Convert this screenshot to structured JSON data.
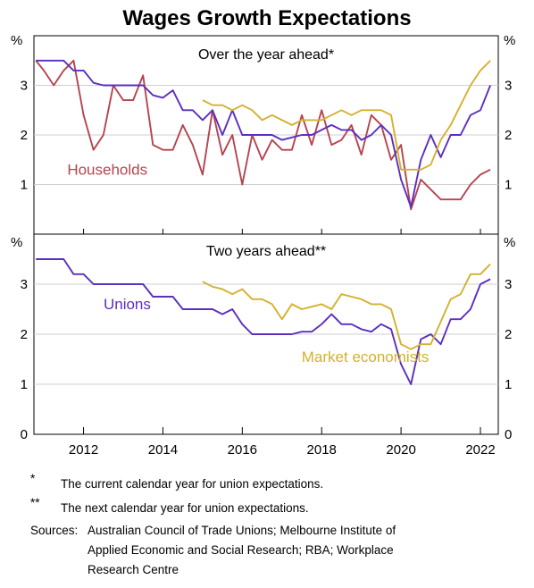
{
  "chart_data": {
    "type": "line",
    "title": "Wages Growth Expectations",
    "unit": "%",
    "x_ticks": [
      "2012",
      "2014",
      "2016",
      "2018",
      "2020",
      "2022"
    ],
    "xlim": [
      2010.75,
      2022.45
    ],
    "panels": [
      {
        "subtitle": "Over the year ahead*",
        "ylim": [
          0,
          4
        ],
        "y_ticks": [
          "1",
          "2",
          "3"
        ],
        "series": [
          {
            "name": "Households",
            "color": "#b5444e",
            "points": [
              [
                2010.8,
                3.5
              ],
              [
                2011.0,
                3.3
              ],
              [
                2011.25,
                3.0
              ],
              [
                2011.5,
                3.3
              ],
              [
                2011.75,
                3.5
              ],
              [
                2012.0,
                2.4
              ],
              [
                2012.25,
                1.7
              ],
              [
                2012.5,
                2.0
              ],
              [
                2012.75,
                3.0
              ],
              [
                2013.0,
                2.7
              ],
              [
                2013.25,
                2.7
              ],
              [
                2013.5,
                3.2
              ],
              [
                2013.75,
                1.8
              ],
              [
                2014.0,
                1.7
              ],
              [
                2014.25,
                1.7
              ],
              [
                2014.5,
                2.2
              ],
              [
                2014.75,
                1.8
              ],
              [
                2015.0,
                1.2
              ],
              [
                2015.25,
                2.5
              ],
              [
                2015.5,
                1.6
              ],
              [
                2015.75,
                2.0
              ],
              [
                2016.0,
                1.0
              ],
              [
                2016.25,
                2.0
              ],
              [
                2016.5,
                1.5
              ],
              [
                2016.75,
                1.9
              ],
              [
                2017.0,
                1.7
              ],
              [
                2017.25,
                1.7
              ],
              [
                2017.5,
                2.4
              ],
              [
                2017.75,
                1.8
              ],
              [
                2018.0,
                2.5
              ],
              [
                2018.25,
                1.8
              ],
              [
                2018.5,
                1.9
              ],
              [
                2018.75,
                2.2
              ],
              [
                2019.0,
                1.6
              ],
              [
                2019.25,
                2.4
              ],
              [
                2019.5,
                2.2
              ],
              [
                2019.75,
                1.5
              ],
              [
                2020.0,
                1.8
              ],
              [
                2020.25,
                0.5
              ],
              [
                2020.5,
                1.1
              ],
              [
                2020.75,
                0.9
              ],
              [
                2021.0,
                0.7
              ],
              [
                2021.25,
                0.7
              ],
              [
                2021.5,
                0.7
              ],
              [
                2021.75,
                1.0
              ],
              [
                2022.0,
                1.2
              ],
              [
                2022.25,
                1.3
              ]
            ]
          },
          {
            "name": "Unions",
            "color": "#5b2fc0",
            "points": [
              [
                2010.8,
                3.5
              ],
              [
                2011.0,
                3.5
              ],
              [
                2011.25,
                3.5
              ],
              [
                2011.5,
                3.5
              ],
              [
                2011.75,
                3.3
              ],
              [
                2012.0,
                3.3
              ],
              [
                2012.25,
                3.05
              ],
              [
                2012.5,
                3.0
              ],
              [
                2012.75,
                3.0
              ],
              [
                2013.0,
                3.0
              ],
              [
                2013.25,
                3.0
              ],
              [
                2013.5,
                3.0
              ],
              [
                2013.75,
                2.8
              ],
              [
                2014.0,
                2.75
              ],
              [
                2014.25,
                2.9
              ],
              [
                2014.5,
                2.5
              ],
              [
                2014.75,
                2.5
              ],
              [
                2015.0,
                2.3
              ],
              [
                2015.25,
                2.5
              ],
              [
                2015.5,
                2.0
              ],
              [
                2015.75,
                2.5
              ],
              [
                2016.0,
                2.0
              ],
              [
                2016.25,
                2.0
              ],
              [
                2016.5,
                2.0
              ],
              [
                2016.75,
                2.0
              ],
              [
                2017.0,
                1.9
              ],
              [
                2017.25,
                1.95
              ],
              [
                2017.5,
                2.0
              ],
              [
                2017.75,
                2.0
              ],
              [
                2018.0,
                2.1
              ],
              [
                2018.25,
                2.2
              ],
              [
                2018.5,
                2.1
              ],
              [
                2018.75,
                2.1
              ],
              [
                2019.0,
                1.9
              ],
              [
                2019.25,
                2.0
              ],
              [
                2019.5,
                2.2
              ],
              [
                2019.75,
                2.0
              ],
              [
                2020.0,
                1.1
              ],
              [
                2020.25,
                0.55
              ],
              [
                2020.5,
                1.5
              ],
              [
                2020.75,
                2.0
              ],
              [
                2021.0,
                1.55
              ],
              [
                2021.25,
                2.0
              ],
              [
                2021.5,
                2.0
              ],
              [
                2021.75,
                2.4
              ],
              [
                2022.0,
                2.5
              ],
              [
                2022.25,
                3.0
              ]
            ]
          },
          {
            "name": "Market economists",
            "color": "#d4b12e",
            "points": [
              [
                2015.0,
                2.7
              ],
              [
                2015.25,
                2.6
              ],
              [
                2015.5,
                2.6
              ],
              [
                2015.75,
                2.5
              ],
              [
                2016.0,
                2.6
              ],
              [
                2016.25,
                2.5
              ],
              [
                2016.5,
                2.3
              ],
              [
                2016.75,
                2.4
              ],
              [
                2017.0,
                2.3
              ],
              [
                2017.25,
                2.2
              ],
              [
                2017.5,
                2.3
              ],
              [
                2017.75,
                2.3
              ],
              [
                2018.0,
                2.3
              ],
              [
                2018.25,
                2.4
              ],
              [
                2018.5,
                2.5
              ],
              [
                2018.75,
                2.4
              ],
              [
                2019.0,
                2.5
              ],
              [
                2019.25,
                2.5
              ],
              [
                2019.5,
                2.5
              ],
              [
                2019.75,
                2.4
              ],
              [
                2020.0,
                1.3
              ],
              [
                2020.25,
                1.3
              ],
              [
                2020.5,
                1.3
              ],
              [
                2020.75,
                1.4
              ],
              [
                2021.0,
                1.9
              ],
              [
                2021.25,
                2.2
              ],
              [
                2021.5,
                2.6
              ],
              [
                2021.75,
                3.0
              ],
              [
                2022.0,
                3.3
              ],
              [
                2022.25,
                3.5
              ]
            ]
          }
        ]
      },
      {
        "subtitle": "Two years ahead**",
        "ylim": [
          0,
          4
        ],
        "y_ticks": [
          "0",
          "1",
          "2",
          "3"
        ],
        "series": [
          {
            "name": "Unions",
            "color": "#5b2fc0",
            "points": [
              [
                2010.8,
                3.5
              ],
              [
                2011.0,
                3.5
              ],
              [
                2011.25,
                3.5
              ],
              [
                2011.5,
                3.5
              ],
              [
                2011.75,
                3.2
              ],
              [
                2012.0,
                3.2
              ],
              [
                2012.25,
                3.0
              ],
              [
                2012.5,
                3.0
              ],
              [
                2012.75,
                3.0
              ],
              [
                2013.0,
                3.0
              ],
              [
                2013.25,
                3.0
              ],
              [
                2013.5,
                3.0
              ],
              [
                2013.75,
                2.75
              ],
              [
                2014.0,
                2.75
              ],
              [
                2014.25,
                2.75
              ],
              [
                2014.5,
                2.5
              ],
              [
                2014.75,
                2.5
              ],
              [
                2015.0,
                2.5
              ],
              [
                2015.25,
                2.5
              ],
              [
                2015.5,
                2.4
              ],
              [
                2015.75,
                2.5
              ],
              [
                2016.0,
                2.2
              ],
              [
                2016.25,
                2.0
              ],
              [
                2016.5,
                2.0
              ],
              [
                2016.75,
                2.0
              ],
              [
                2017.0,
                2.0
              ],
              [
                2017.25,
                2.0
              ],
              [
                2017.5,
                2.05
              ],
              [
                2017.75,
                2.05
              ],
              [
                2018.0,
                2.2
              ],
              [
                2018.25,
                2.4
              ],
              [
                2018.5,
                2.2
              ],
              [
                2018.75,
                2.2
              ],
              [
                2019.0,
                2.1
              ],
              [
                2019.25,
                2.05
              ],
              [
                2019.5,
                2.2
              ],
              [
                2019.75,
                2.1
              ],
              [
                2020.0,
                1.4
              ],
              [
                2020.25,
                1.0
              ],
              [
                2020.5,
                1.9
              ],
              [
                2020.75,
                2.0
              ],
              [
                2021.0,
                1.8
              ],
              [
                2021.25,
                2.3
              ],
              [
                2021.5,
                2.3
              ],
              [
                2021.75,
                2.5
              ],
              [
                2022.0,
                3.0
              ],
              [
                2022.25,
                3.1
              ]
            ]
          },
          {
            "name": "Market economists",
            "color": "#d4b12e",
            "points": [
              [
                2015.0,
                3.05
              ],
              [
                2015.25,
                2.95
              ],
              [
                2015.5,
                2.9
              ],
              [
                2015.75,
                2.8
              ],
              [
                2016.0,
                2.9
              ],
              [
                2016.25,
                2.7
              ],
              [
                2016.5,
                2.7
              ],
              [
                2016.75,
                2.6
              ],
              [
                2017.0,
                2.3
              ],
              [
                2017.25,
                2.6
              ],
              [
                2017.5,
                2.5
              ],
              [
                2017.75,
                2.55
              ],
              [
                2018.0,
                2.6
              ],
              [
                2018.25,
                2.5
              ],
              [
                2018.5,
                2.8
              ],
              [
                2018.75,
                2.75
              ],
              [
                2019.0,
                2.7
              ],
              [
                2019.25,
                2.6
              ],
              [
                2019.5,
                2.6
              ],
              [
                2019.75,
                2.5
              ],
              [
                2020.0,
                1.8
              ],
              [
                2020.25,
                1.7
              ],
              [
                2020.5,
                1.8
              ],
              [
                2020.75,
                1.8
              ],
              [
                2021.0,
                2.25
              ],
              [
                2021.25,
                2.7
              ],
              [
                2021.5,
                2.8
              ],
              [
                2021.75,
                3.2
              ],
              [
                2022.0,
                3.2
              ],
              [
                2022.25,
                3.4
              ]
            ]
          }
        ]
      }
    ],
    "labels": [
      {
        "text": "Households",
        "panel": 0,
        "x": 2012.6,
        "y": 1.2,
        "color": "#b5444e"
      },
      {
        "text": "Unions",
        "panel": 1,
        "x": 2013.1,
        "y": 2.5,
        "color": "#5b2fc0"
      },
      {
        "text": "Market economists",
        "panel": 1,
        "x": 2019.1,
        "y": 1.45,
        "color": "#d4b12e"
      }
    ],
    "legend": "none",
    "grid": "horizontal"
  },
  "footnotes": [
    {
      "mark": "*",
      "text": "The current calendar year for union expectations."
    },
    {
      "mark": "**",
      "text": "The next calendar year for union expectations."
    }
  ],
  "sources": {
    "label": "Sources:",
    "lines": [
      "Australian Council of Trade Unions; Melbourne Institute of",
      "Applied Economic and Social Research; RBA; Workplace",
      "Research Centre"
    ]
  }
}
